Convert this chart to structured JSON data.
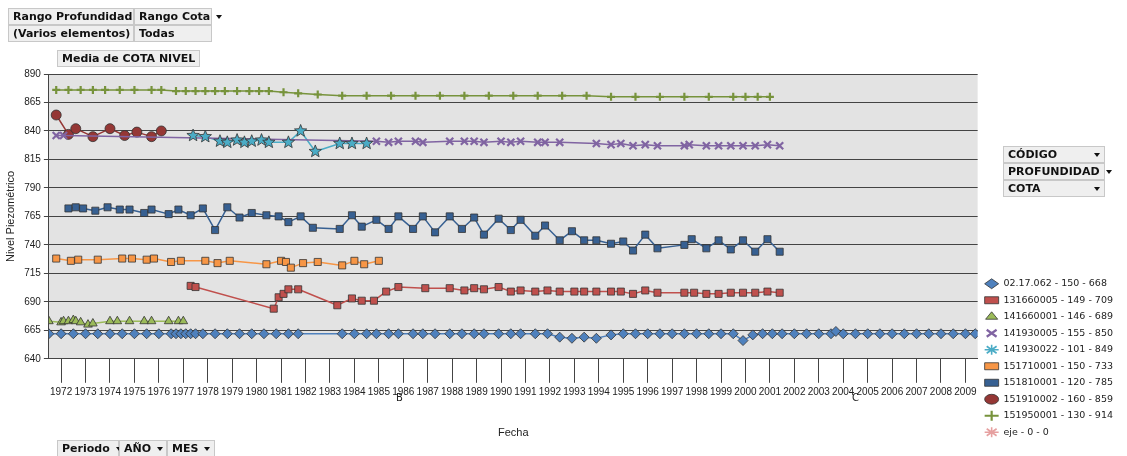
{
  "chart_data": {
    "type": "line",
    "title": "Media de COTA NIVEL",
    "xlabel": "Fecha",
    "ylabel": "Nivel Piezométrico",
    "xlim": [
      1972,
      2010
    ],
    "ylim": [
      640,
      890
    ],
    "yticks": [
      640,
      665,
      690,
      715,
      740,
      765,
      790,
      815,
      840,
      865,
      890
    ],
    "xticks": [
      {
        "value": 1972.5,
        "label": "1972"
      },
      {
        "value": 1973.5,
        "label": "1973"
      },
      {
        "value": 1974.5,
        "label": "1974"
      },
      {
        "value": 1975.5,
        "label": "1975"
      },
      {
        "value": 1976.5,
        "label": "1976"
      },
      {
        "value": 1977.5,
        "label": "1977"
      },
      {
        "value": 1978.5,
        "label": "1978"
      },
      {
        "value": 1979.5,
        "label": "1979"
      },
      {
        "value": 1980.5,
        "label": "1980"
      },
      {
        "value": 1981.5,
        "label": "1981"
      },
      {
        "value": 1982.5,
        "label": "1982"
      },
      {
        "value": 1983.5,
        "label": "1983"
      },
      {
        "value": 1984.5,
        "label": "1984"
      },
      {
        "value": 1985.5,
        "label": "1985"
      },
      {
        "value": 1986.5,
        "label": "1986"
      },
      {
        "value": 1987.5,
        "label": "1987"
      },
      {
        "value": 1988.5,
        "label": "1988"
      },
      {
        "value": 1989.5,
        "label": "1989"
      },
      {
        "value": 1990.5,
        "label": "1990"
      },
      {
        "value": 1991.5,
        "label": "1991"
      },
      {
        "value": 1992.5,
        "label": "1992"
      },
      {
        "value": 1993.5,
        "label": "1993"
      },
      {
        "value": 1994.5,
        "label": "1994"
      },
      {
        "value": 1995.5,
        "label": "1995"
      },
      {
        "value": 1996.5,
        "label": "1996"
      },
      {
        "value": 1997.5,
        "label": "1997"
      },
      {
        "value": 1998.5,
        "label": "1998"
      },
      {
        "value": 1999.5,
        "label": "1999"
      },
      {
        "value": 2000.5,
        "label": "2000"
      },
      {
        "value": 2001.5,
        "label": "2001"
      },
      {
        "value": 2002.5,
        "label": "2002"
      },
      {
        "value": 2003.5,
        "label": "2003"
      },
      {
        "value": 2004.5,
        "label": "2004"
      },
      {
        "value": 2005.5,
        "label": "2005"
      },
      {
        "value": 2006.5,
        "label": "2006"
      },
      {
        "value": 2007.5,
        "label": "2007"
      },
      {
        "value": 2008.5,
        "label": "2008"
      },
      {
        "value": 2009.5,
        "label": "2009"
      }
    ],
    "grid": "y",
    "legend": "right",
    "line_style": "solid",
    "annotations": [
      "Rango Profundidad",
      "Rango Cota",
      "(Varios elementos)",
      "Todas",
      "CÓDIGO",
      "PROFUNDIDAD",
      "COTA",
      "Periodo",
      "AÑO",
      "MES",
      "B",
      "C"
    ],
    "series": [
      {
        "name": "02.17.062 - 150 - 668",
        "color": "#4f81bd",
        "marker": "diamond",
        "x": [
          1972.0,
          1972.5,
          1973.0,
          1973.5,
          1974.0,
          1974.5,
          1975.0,
          1975.5,
          1976.0,
          1976.5,
          1977.0,
          1977.2,
          1977.4,
          1977.6,
          1977.8,
          1978.0,
          1978.3,
          1978.8,
          1979.3,
          1979.8,
          1980.3,
          1980.8,
          1981.3,
          1981.8,
          1982.2,
          1984.0,
          1984.5,
          1985.0,
          1985.4,
          1985.9,
          1986.3,
          1986.9,
          1987.3,
          1987.8,
          1988.4,
          1988.9,
          1989.4,
          1989.8,
          1990.4,
          1990.9,
          1991.3,
          1991.9,
          1992.4,
          1992.9,
          1993.4,
          1993.9,
          1994.4,
          1995.0,
          1995.5,
          1996.0,
          1996.5,
          1997.0,
          1997.5,
          1998.0,
          1998.5,
          1999.0,
          1999.5,
          2000.0,
          2000.4,
          2000.8,
          2001.2,
          2001.6,
          2002.0,
          2002.5,
          2003.0,
          2003.5,
          2004.0,
          2004.2,
          2004.5,
          2005.0,
          2005.5,
          2006.0,
          2006.5,
          2007.0,
          2007.5,
          2008.0,
          2008.5,
          2009.0,
          2009.5,
          2009.9
        ],
        "values": [
          662,
          662,
          662,
          662,
          662,
          662,
          662,
          662,
          662,
          662,
          662,
          662,
          662,
          662,
          662,
          662,
          662,
          662,
          662,
          662,
          662,
          662,
          662,
          662,
          662,
          662,
          662,
          662,
          662,
          662,
          662,
          662,
          662,
          662,
          662,
          662,
          662,
          662,
          662,
          662,
          662,
          662,
          662,
          659,
          658,
          659,
          658,
          661,
          662,
          662,
          662,
          662,
          662,
          662,
          662,
          662,
          662,
          662,
          656,
          661,
          662,
          662,
          662,
          662,
          662,
          662,
          662,
          664,
          662,
          662,
          662,
          662,
          662,
          662,
          662,
          662,
          662,
          662,
          662,
          662
        ]
      },
      {
        "name": "131660005 - 149 - 709",
        "color": "#c0504d",
        "marker": "square",
        "x": [
          1977.8,
          1978.0,
          1981.2,
          1981.4,
          1981.6,
          1981.8,
          1982.2,
          1983.8,
          1984.4,
          1984.8,
          1985.3,
          1985.8,
          1986.3,
          1987.4,
          1988.4,
          1989.0,
          1989.4,
          1989.8,
          1990.4,
          1990.9,
          1991.3,
          1991.9,
          1992.4,
          1992.9,
          1993.5,
          1993.9,
          1994.4,
          1995.0,
          1995.4,
          1995.9,
          1996.4,
          1996.9,
          1998.0,
          1998.4,
          1998.9,
          1999.4,
          1999.9,
          2000.4,
          2000.9,
          2001.4,
          2001.9
        ],
        "values": [
          704,
          703,
          684,
          694,
          697,
          701,
          701,
          687,
          693,
          691,
          691,
          699,
          703,
          702,
          702,
          700,
          702,
          701,
          703,
          699,
          700,
          699,
          700,
          699,
          699,
          699,
          699,
          699,
          699,
          697,
          700,
          698,
          698,
          698,
          697,
          697,
          698,
          698,
          698,
          699,
          698
        ]
      },
      {
        "name": "141660001 - 146 - 689",
        "color": "#9bbb59",
        "marker": "triangle",
        "x": [
          1972.0,
          1972.5,
          1972.6,
          1972.8,
          1973.0,
          1973.1,
          1973.3,
          1973.6,
          1973.8,
          1974.5,
          1974.8,
          1975.3,
          1975.9,
          1976.2,
          1976.9,
          1977.3,
          1977.5
        ],
        "values": [
          673,
          672,
          673,
          673,
          674,
          673,
          672,
          670,
          671,
          673,
          673,
          673,
          673,
          673,
          673,
          673,
          673
        ]
      },
      {
        "name": "141930005 - 155 - 850",
        "color": "#8064a2",
        "marker": "cross",
        "x": [
          1972.3,
          1972.6,
          1985.4,
          1985.9,
          1986.3,
          1987.0,
          1987.3,
          1988.4,
          1989.0,
          1989.4,
          1989.8,
          1990.5,
          1990.9,
          1991.3,
          1992.0,
          1992.3,
          1992.9,
          1994.4,
          1995.0,
          1995.4,
          1995.9,
          1996.4,
          1996.9,
          1998.0,
          1998.2,
          1998.9,
          1999.4,
          1999.9,
          2000.4,
          2000.9,
          2001.4,
          2001.9
        ],
        "values": [
          836,
          836,
          831,
          830,
          831,
          831,
          830,
          831,
          831,
          831,
          830,
          831,
          830,
          831,
          830,
          830,
          830,
          829,
          828,
          829,
          827,
          828,
          827,
          827,
          828,
          827,
          827,
          827,
          827,
          827,
          828,
          827
        ]
      },
      {
        "name": "141930022 - 101 - 849",
        "color": "#4bacc6",
        "marker": "star",
        "x": [
          1977.9,
          1978.4,
          1979.0,
          1979.3,
          1979.7,
          1980.0,
          1980.3,
          1980.7,
          1981.0,
          1981.8,
          1982.3,
          1982.9,
          1983.9,
          1984.4,
          1985.0
        ],
        "values": [
          836,
          835,
          831,
          830,
          832,
          830,
          831,
          832,
          830,
          830,
          840,
          822,
          829,
          829,
          829
        ]
      },
      {
        "name": "151710001 - 150 - 733",
        "color": "#f79646",
        "marker": "square",
        "x": [
          1972.3,
          1972.9,
          1973.2,
          1974.0,
          1975.0,
          1975.4,
          1976.0,
          1976.3,
          1977.0,
          1977.4,
          1978.4,
          1978.9,
          1979.4,
          1980.9,
          1981.5,
          1981.7,
          1981.9,
          1982.4,
          1983.0,
          1984.0,
          1984.5,
          1984.9,
          1985.5
        ],
        "values": [
          728,
          726,
          727,
          727,
          728,
          728,
          727,
          728,
          725,
          726,
          726,
          724,
          726,
          723,
          726,
          725,
          720,
          724,
          725,
          722,
          726,
          723,
          726
        ]
      },
      {
        "name": "151810001 - 120 - 785",
        "color": "#376092",
        "marker": "square",
        "x": [
          1972.8,
          1973.1,
          1973.4,
          1973.9,
          1974.4,
          1974.9,
          1975.3,
          1975.9,
          1976.2,
          1976.9,
          1977.3,
          1977.8,
          1978.3,
          1978.8,
          1979.3,
          1979.8,
          1980.3,
          1980.9,
          1981.4,
          1981.8,
          1982.3,
          1982.8,
          1983.9,
          1984.4,
          1984.8,
          1985.4,
          1985.9,
          1986.3,
          1986.9,
          1987.3,
          1987.8,
          1988.4,
          1988.9,
          1989.4,
          1989.8,
          1990.4,
          1990.9,
          1991.3,
          1991.9,
          1992.3,
          1992.9,
          1993.4,
          1993.9,
          1994.4,
          1995.0,
          1995.5,
          1995.9,
          1996.4,
          1996.9,
          1998.0,
          1998.3,
          1998.9,
          1999.4,
          1999.9,
          2000.4,
          2000.9,
          2001.4,
          2001.9
        ],
        "values": [
          772,
          773,
          772,
          770,
          773,
          771,
          771,
          768,
          771,
          767,
          771,
          766,
          772,
          753,
          773,
          764,
          768,
          766,
          765,
          760,
          765,
          755,
          754,
          766,
          756,
          762,
          754,
          765,
          754,
          765,
          751,
          765,
          754,
          764,
          749,
          763,
          753,
          762,
          748,
          757,
          744,
          752,
          744,
          744,
          741,
          743,
          735,
          749,
          737,
          740,
          745,
          737,
          744,
          736,
          744,
          734,
          745,
          734
        ]
      },
      {
        "name": "151910002 - 160 - 859",
        "color": "#953735",
        "marker": "circle",
        "x": [
          1972.3,
          1972.8,
          1973.1,
          1973.8,
          1974.5,
          1975.1,
          1975.6,
          1976.2,
          1976.6
        ],
        "values": [
          854,
          837,
          842,
          835,
          842,
          836,
          839,
          835,
          840
        ]
      },
      {
        "name": "151950001 - 130 - 914",
        "color": "#77933c",
        "marker": "plus",
        "x": [
          1972.3,
          1972.8,
          1973.3,
          1973.8,
          1974.3,
          1974.9,
          1975.5,
          1976.2,
          1976.6,
          1977.2,
          1977.6,
          1978.0,
          1978.4,
          1978.8,
          1979.2,
          1979.7,
          1980.2,
          1980.6,
          1981.0,
          1981.6,
          1982.2,
          1983.0,
          1984.0,
          1985.0,
          1986.0,
          1987.0,
          1988.0,
          1989.0,
          1990.0,
          1991.0,
          1992.0,
          1993.0,
          1994.0,
          1995.0,
          1996.0,
          1997.0,
          1998.0,
          1999.0,
          2000.0,
          2000.5,
          2001.0,
          2001.5
        ],
        "values": [
          876,
          876,
          876,
          876,
          876,
          876,
          876,
          876,
          876,
          875,
          875,
          875,
          875,
          875,
          875,
          875,
          875,
          875,
          875,
          874,
          873,
          872,
          871,
          871,
          871,
          871,
          871,
          871,
          871,
          871,
          871,
          871,
          871,
          870,
          870,
          870,
          870,
          870,
          870,
          870,
          870,
          870
        ]
      },
      {
        "name": "eje - 0 - 0",
        "color": "#e6a0a0",
        "marker": "star"
      }
    ]
  }
}
